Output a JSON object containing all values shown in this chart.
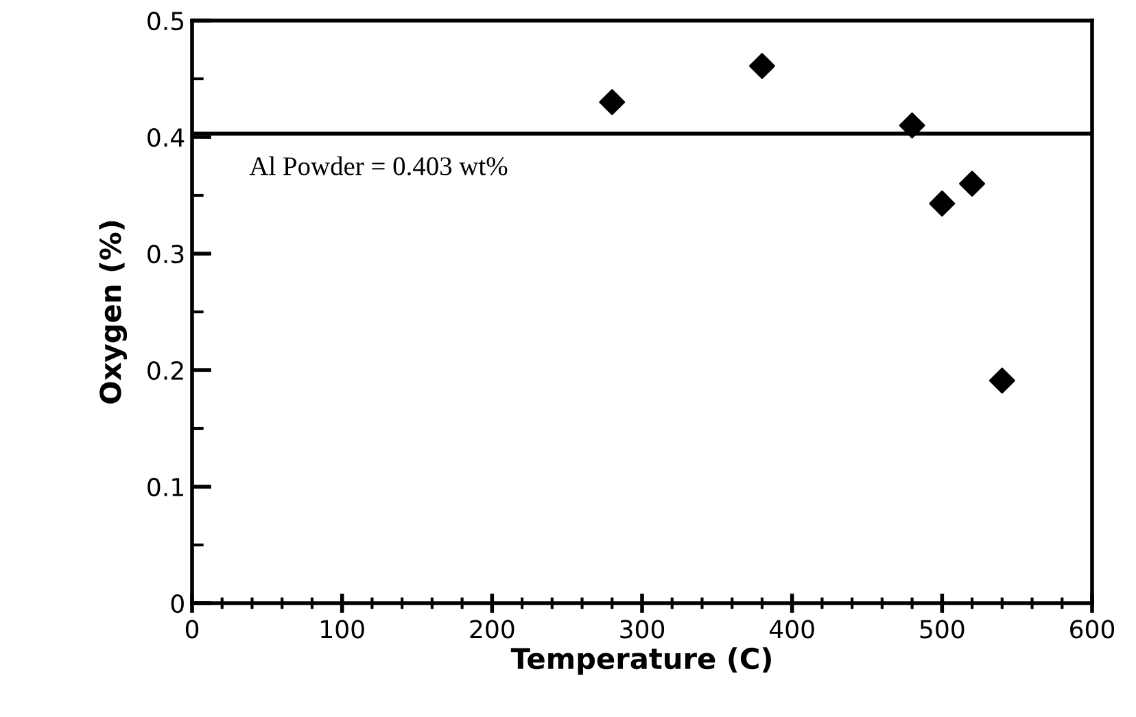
{
  "chart_data": {
    "type": "scatter",
    "xlabel": "Temperature (C)",
    "ylabel": "Oxygen (%)",
    "x": [
      280,
      380,
      480,
      500,
      520,
      540
    ],
    "series": [
      {
        "color": "#000000",
        "values": [
          0.43,
          0.461,
          0.41,
          0.343,
          0.36,
          0.191
        ]
      }
    ],
    "marker": "diamond",
    "xlim": [
      0,
      600
    ],
    "xticks": [
      0,
      100,
      200,
      300,
      400,
      500,
      600
    ],
    "ylim": [
      0,
      0.5
    ],
    "yticks": [
      0,
      0.1,
      0.2,
      0.3,
      0.4,
      0.5
    ],
    "ref_lines": [
      {
        "axis": "y",
        "value": 0.403,
        "label": "Al Powder = 0.403 wt%",
        "color": "#000000",
        "line_style": "solid"
      }
    ],
    "grid": false,
    "legend": false
  }
}
